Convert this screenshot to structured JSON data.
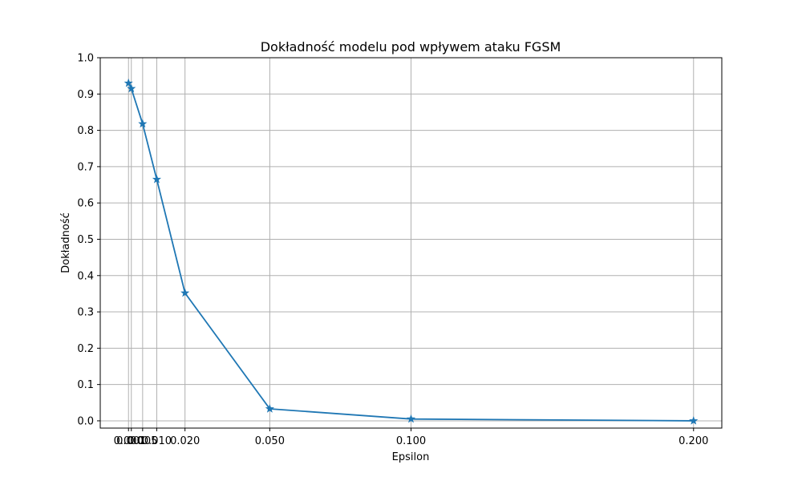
{
  "chart_data": {
    "type": "line",
    "title": "Dokładność modelu pod wpływem ataku FGSM",
    "xlabel": "Epsilon",
    "ylabel": "Dokładność",
    "x": [
      0.0,
      0.001,
      0.005,
      0.01,
      0.02,
      0.05,
      0.1,
      0.2
    ],
    "x_tick_labels": [
      "0.000",
      "0.001",
      "0.005",
      "0.010",
      "0.020",
      "0.050",
      "0.100",
      "0.200"
    ],
    "series": [
      {
        "values": [
          0.93,
          0.915,
          0.818,
          0.665,
          0.352,
          0.033,
          0.005,
          0.0
        ],
        "color": "#1f77b4",
        "marker": "star"
      }
    ],
    "ylim": [
      -0.02,
      1.0
    ],
    "y_ticks": [
      0.0,
      0.1,
      0.2,
      0.3,
      0.4,
      0.5,
      0.6,
      0.7,
      0.8,
      0.9,
      1.0
    ],
    "y_tick_labels": [
      "0.0",
      "0.1",
      "0.2",
      "0.3",
      "0.4",
      "0.5",
      "0.6",
      "0.7",
      "0.8",
      "0.9",
      "1.0"
    ],
    "grid": true,
    "legend": "none"
  }
}
